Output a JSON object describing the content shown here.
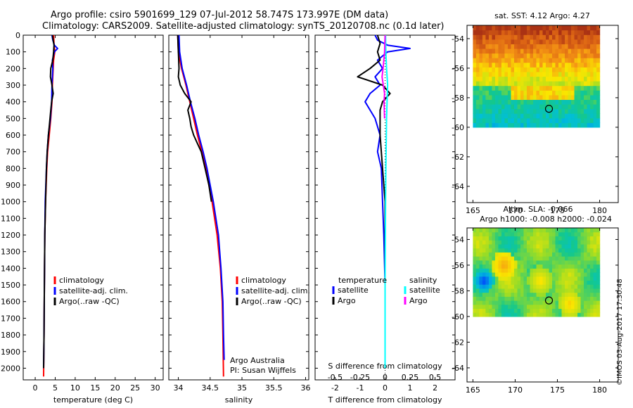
{
  "titles": {
    "line1": "Argo profile: csiro 5901699_129 07-Jul-2012 58.747S 173.997E (DM data)",
    "line2": "Climatology: CARS2009. Satellite-adjusted climatology: synTS_20120708.nc (0.1d later)"
  },
  "watermark": "©IMOS 03-Aug-2017 17:30:48",
  "colors": {
    "climatology": "#ff0000",
    "satellite_adj": "#0000ff",
    "argo": "#000000",
    "temp_diff_sat": "#0000ff",
    "temp_diff_argo": "#000000",
    "sal_diff_sat": "#00ffff",
    "sal_diff_argo": "#ff00ff",
    "marker": "#000000"
  },
  "chart_data": [
    {
      "type": "line",
      "id": "temperature",
      "xlabel": "temperature (deg C)",
      "xlim": [
        -3,
        32
      ],
      "ylim": [
        2070,
        0
      ],
      "xticks": [
        0,
        5,
        10,
        15,
        20,
        25,
        30
      ],
      "yticks": [
        0,
        100,
        200,
        300,
        400,
        500,
        600,
        700,
        800,
        900,
        1000,
        1100,
        1200,
        1300,
        1400,
        1500,
        1600,
        1700,
        1800,
        1900,
        2000
      ],
      "legend": [
        "climatology",
        "satellite-adj. clim.",
        "Argo(..raw -QC)"
      ],
      "series": [
        {
          "name": "climatology",
          "color": "#ff0000",
          "depth": [
            0,
            50,
            100,
            150,
            200,
            300,
            400,
            500,
            600,
            700,
            800,
            1000,
            1200,
            1500,
            1800,
            2050
          ],
          "values": [
            4.6,
            4.7,
            4.9,
            4.6,
            4.5,
            4.3,
            4.2,
            3.9,
            3.5,
            3.1,
            2.9,
            2.6,
            2.4,
            2.3,
            2.2,
            2.1
          ]
        },
        {
          "name": "satellite-adj. clim.",
          "color": "#0000ff",
          "depth": [
            0,
            30,
            60,
            80,
            100,
            150,
            200,
            300,
            400,
            500,
            600,
            700,
            800,
            1000,
            1200,
            1500,
            1800,
            2000
          ],
          "values": [
            4.2,
            4.4,
            4.8,
            5.6,
            4.8,
            4.3,
            4.4,
            4.2,
            4.1,
            3.8,
            3.3,
            3.0,
            2.8,
            2.5,
            2.4,
            2.3,
            2.2,
            2.1
          ]
        },
        {
          "name": "Argo(..raw -QC)",
          "color": "#000000",
          "depth": [
            0,
            30,
            60,
            100,
            150,
            200,
            250,
            300,
            350,
            400,
            450,
            500,
            550,
            600,
            700,
            800,
            900,
            1000,
            1200,
            1500,
            1800,
            2000
          ],
          "values": [
            4.3,
            4.5,
            4.7,
            4.6,
            4.4,
            3.9,
            3.8,
            4.2,
            4.5,
            4.1,
            3.9,
            3.7,
            3.5,
            3.3,
            3.0,
            2.8,
            2.7,
            2.6,
            2.4,
            2.3,
            2.2,
            2.1
          ]
        }
      ]
    },
    {
      "type": "line",
      "id": "salinity",
      "xlabel": "salinity",
      "xlim": [
        33.85,
        36.05
      ],
      "ylim": [
        2070,
        0
      ],
      "xticks": [
        34,
        34.5,
        35,
        35.5,
        36
      ],
      "annotation": [
        "Argo Australia",
        "PI: Susan Wijffels"
      ],
      "legend": [
        "climatology",
        "satellite-adj. clim.",
        "Argo(..raw -QC)"
      ],
      "series": [
        {
          "name": "climatology",
          "color": "#ff0000",
          "depth": [
            0,
            100,
            200,
            300,
            400,
            500,
            600,
            700,
            800,
            1000,
            1200,
            1400,
            1600,
            1800,
            2050
          ],
          "values": [
            33.99,
            34.0,
            34.05,
            34.12,
            34.18,
            34.24,
            34.3,
            34.37,
            34.43,
            34.53,
            34.61,
            34.66,
            34.69,
            34.7,
            34.71
          ]
        },
        {
          "name": "satellite-adj. clim.",
          "color": "#0000ff",
          "depth": [
            0,
            100,
            200,
            300,
            400,
            500,
            600,
            700,
            800,
            1000,
            1200,
            1400,
            1600,
            1800,
            1950
          ],
          "values": [
            34.01,
            34.02,
            34.06,
            34.13,
            34.19,
            34.26,
            34.32,
            34.39,
            34.45,
            34.55,
            34.63,
            34.67,
            34.7,
            34.71,
            34.72
          ]
        },
        {
          "name": "Argo(..raw -QC)",
          "color": "#000000",
          "depth": [
            0,
            100,
            200,
            250,
            300,
            350,
            400,
            450,
            500,
            550,
            600,
            650,
            700,
            800,
            900,
            1000
          ],
          "values": [
            33.99,
            34.0,
            34.01,
            34.0,
            34.03,
            34.1,
            34.2,
            34.15,
            34.18,
            34.2,
            34.24,
            34.3,
            34.36,
            34.42,
            34.48,
            34.52
          ]
        }
      ]
    },
    {
      "type": "line",
      "id": "differences",
      "xlabel": "T difference from climatology",
      "xlabel_top": "S difference from climatology",
      "xlim": [
        -2.8,
        2.8
      ],
      "ylim": [
        2070,
        0
      ],
      "xticks": [
        -2,
        -1,
        0,
        1,
        2
      ],
      "xticks_s_labels": [
        "-0.5",
        "-0.25",
        "0",
        "0.25",
        "0.5"
      ],
      "legend": {
        "temperature": [
          "satellite",
          "Argo"
        ],
        "salinity": [
          "satellite",
          "Argo"
        ],
        "temperature_title": "temperature",
        "salinity_title": "salinity"
      },
      "series": [
        {
          "name": "temperature satellite",
          "color": "#0000ff",
          "depth": [
            0,
            30,
            60,
            80,
            100,
            150,
            200,
            250,
            300,
            350,
            400,
            450,
            500,
            600,
            700,
            800,
            1000,
            1200,
            1500,
            1800,
            2000
          ],
          "values": [
            -0.4,
            -0.3,
            0.1,
            1.0,
            0.1,
            -0.3,
            -0.1,
            -0.4,
            -0.2,
            -0.6,
            -0.8,
            -0.6,
            -0.4,
            -0.2,
            -0.3,
            -0.15,
            -0.1,
            -0.05,
            0.0,
            0.0,
            0.0
          ]
        },
        {
          "name": "temperature Argo",
          "color": "#000000",
          "depth": [
            0,
            50,
            100,
            150,
            200,
            250,
            300,
            350,
            400,
            450,
            500,
            600,
            800,
            1000,
            1200,
            1500,
            1800,
            2000
          ],
          "values": [
            -0.3,
            -0.2,
            -0.3,
            -0.2,
            -0.6,
            -1.1,
            -0.1,
            0.2,
            -0.1,
            -0.2,
            -0.2,
            -0.2,
            -0.1,
            0.0,
            0.0,
            0.0,
            0.0,
            0.0
          ]
        },
        {
          "name": "salinity satellite",
          "color": "#00ffff",
          "depth": [
            0,
            100,
            200,
            300,
            400,
            500,
            600,
            800,
            1000,
            1200,
            1500,
            1800,
            2000
          ],
          "values": [
            0.02,
            0.03,
            0.06,
            0.1,
            0.08,
            0.06,
            0.05,
            0.03,
            0.02,
            0.01,
            0.0,
            0.0,
            0.0
          ]
        },
        {
          "name": "salinity Argo",
          "color": "#ff00ff",
          "depth": [
            0,
            100,
            150,
            200,
            250,
            300,
            350,
            400,
            450,
            500
          ],
          "values": [
            0.0,
            -0.02,
            -0.05,
            -0.08,
            -0.12,
            -0.07,
            -0.02,
            -0.04,
            -0.03,
            -0.02
          ]
        }
      ]
    },
    {
      "type": "heatmap",
      "id": "sst_map",
      "title": "sat. SST: 4.12 Argo: 4.27",
      "xlim": [
        164.3,
        182.2
      ],
      "ylim": [
        -65.1,
        -53.1
      ],
      "xticks": [
        165,
        170,
        175,
        180
      ],
      "yticks": [
        -54,
        -56,
        -58,
        -60,
        -62,
        -64
      ],
      "data_extent": {
        "lon": [
          165,
          180
        ],
        "lat": [
          -60,
          -53.1
        ]
      },
      "marker": {
        "lon": 174.0,
        "lat": -58.75
      }
    },
    {
      "type": "heatmap",
      "id": "sla_map",
      "title": "Altim. SLA: -0.066",
      "subtitle": "Argo h1000: -0.008 h2000: -0.024",
      "xlim": [
        164.3,
        182.2
      ],
      "ylim": [
        -65.1,
        -53.1
      ],
      "xticks": [
        165,
        170,
        175,
        180
      ],
      "yticks": [
        -54,
        -56,
        -58,
        -60,
        -62,
        -64
      ],
      "data_extent": {
        "lon": [
          165,
          180
        ],
        "lat": [
          -60,
          -53.1
        ]
      },
      "marker": {
        "lon": 174.0,
        "lat": -58.75
      }
    }
  ]
}
